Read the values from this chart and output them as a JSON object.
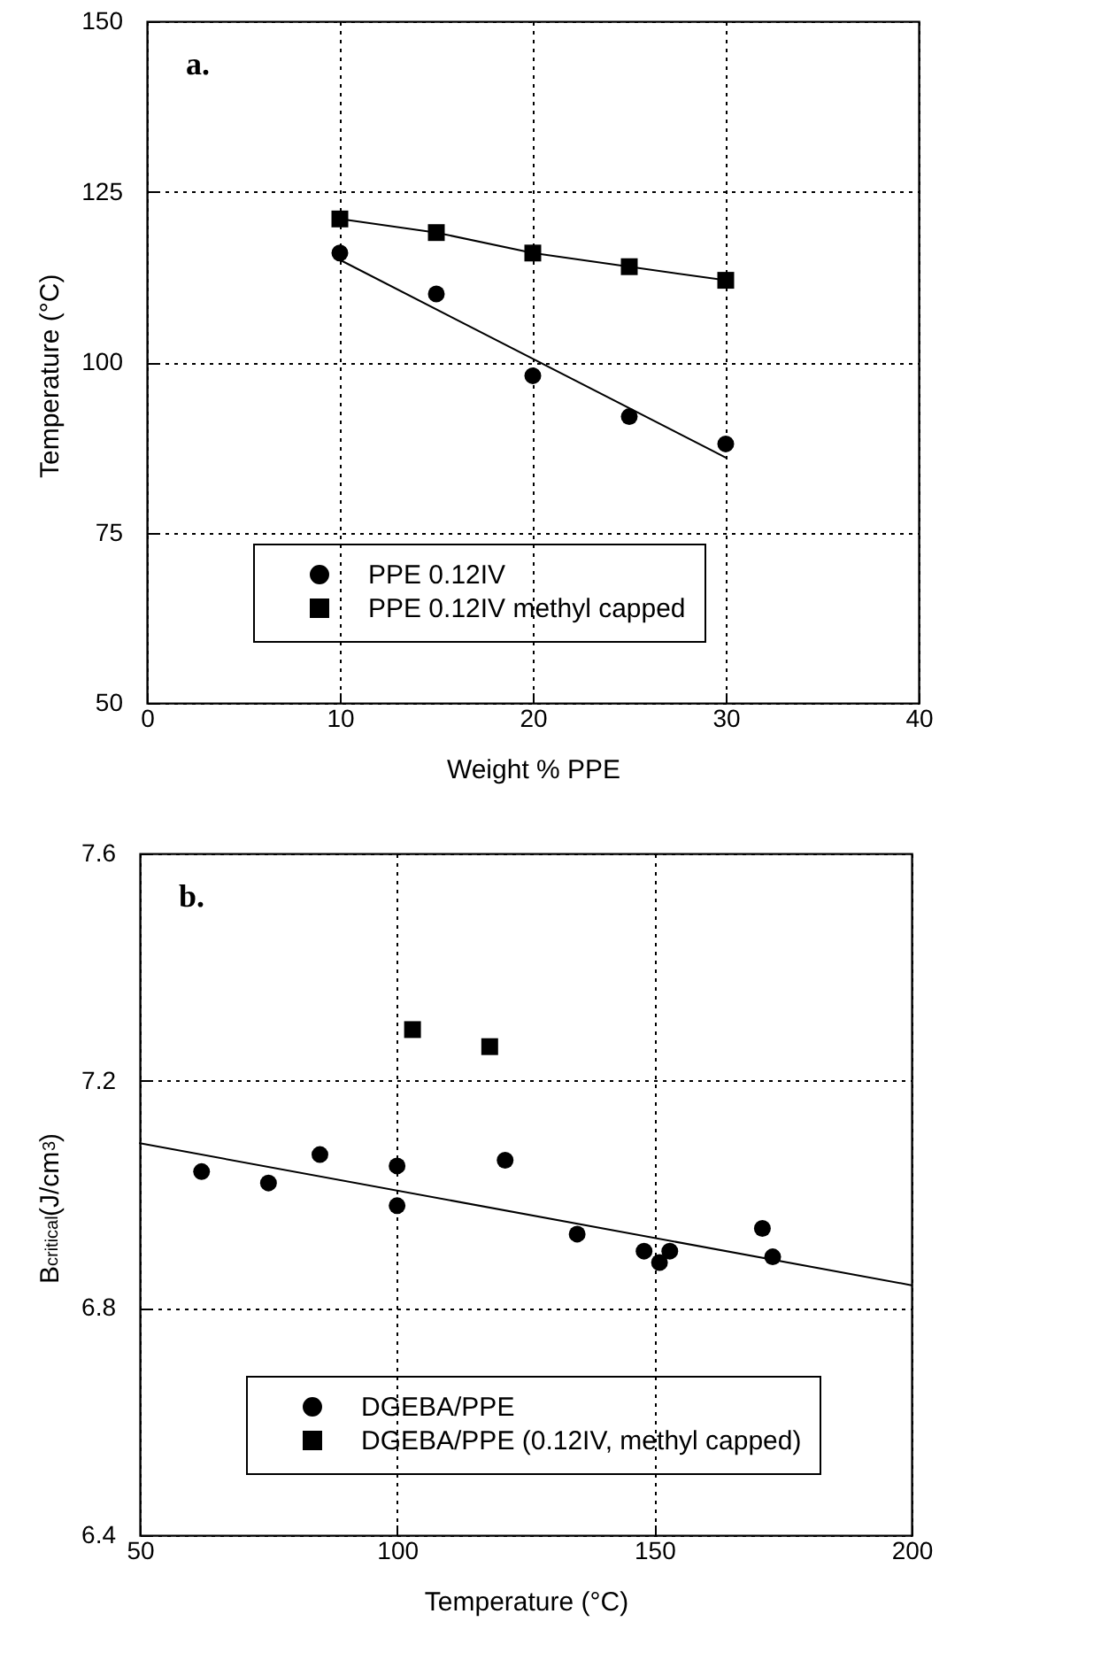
{
  "chart_data": [
    {
      "type": "line",
      "xlabel": "Weight % PPE",
      "ylabel": "Temperature (°C)",
      "annotations": [
        "a."
      ],
      "xlim": [
        0,
        40
      ],
      "xticks": [
        0,
        10,
        20,
        30,
        40
      ],
      "ylim": [
        50,
        150
      ],
      "yticks": [
        50,
        75,
        100,
        125,
        150
      ],
      "grid": true,
      "legend": "bottom",
      "series": [
        {
          "name": "PPE 0.12IV",
          "type": "scatter",
          "marker": "circle",
          "color": "#000000",
          "x": [
            10,
            15,
            20,
            25,
            30
          ],
          "values": [
            116,
            110,
            98,
            92,
            88
          ]
        },
        {
          "marker": "none",
          "color": "#000000",
          "x": [
            10,
            30
          ],
          "values": [
            115,
            86
          ]
        },
        {
          "name": "PPE 0.12IV methyl capped",
          "marker": "square",
          "color": "#000000",
          "x": [
            10,
            15,
            20,
            25,
            30
          ],
          "values": [
            121,
            119,
            116,
            114,
            112
          ]
        }
      ]
    },
    {
      "type": "scatter",
      "xlabel": "Temperature (°C)",
      "ylabel": "B$_{critical}$(J/cm$^{3}$)",
      "annotations": [
        "b."
      ],
      "xlim": [
        50,
        200
      ],
      "xticks": [
        50,
        100,
        150,
        200
      ],
      "ylim": [
        6.4,
        7.6
      ],
      "yticks": [
        6.4,
        6.8,
        7.2,
        7.6
      ],
      "grid": true,
      "legend": "bottom",
      "series": [
        {
          "name": "DGEBA/PPE",
          "marker": "circle",
          "color": "#000000",
          "x": [
            62,
            75,
            85,
            100,
            100,
            121,
            135,
            148,
            151,
            153,
            171,
            173
          ],
          "values": [
            7.04,
            7.02,
            7.07,
            7.05,
            6.98,
            7.06,
            6.93,
            6.9,
            6.88,
            6.9,
            6.94,
            6.89
          ]
        },
        {
          "name": "DGEBA/PPE (0.12IV, methyl capped)",
          "marker": "square",
          "color": "#000000",
          "x": [
            103,
            118
          ],
          "values": [
            7.29,
            7.26
          ]
        },
        {
          "type": "line",
          "marker": "none",
          "color": "#000000",
          "x": [
            50,
            200
          ],
          "values": [
            7.09,
            6.84
          ]
        }
      ]
    }
  ]
}
